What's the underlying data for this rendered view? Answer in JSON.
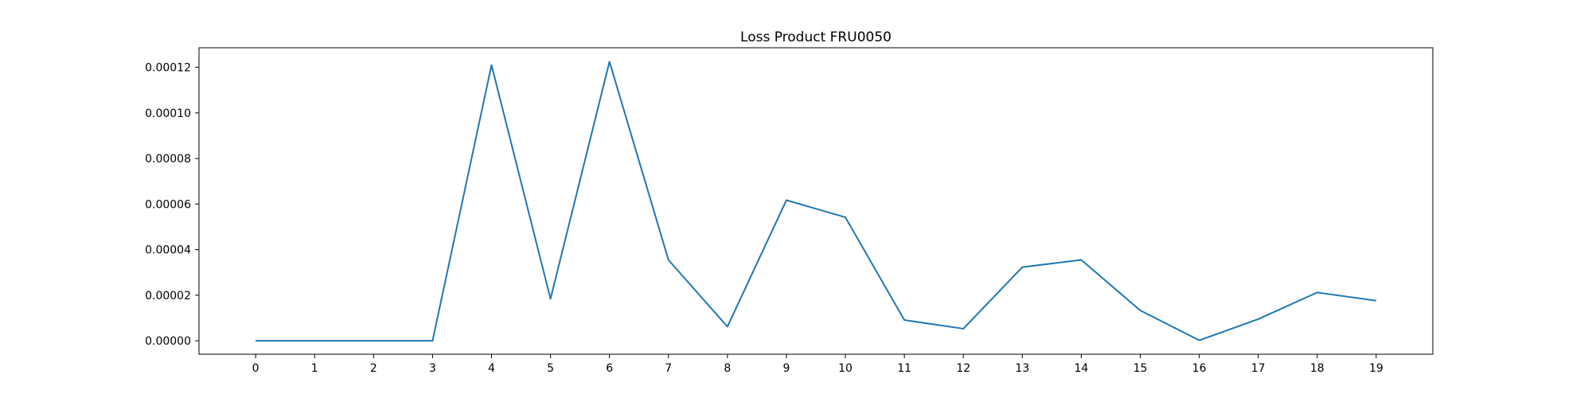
{
  "chart_data": {
    "type": "line",
    "title": "Loss Product FRU0050",
    "xlabel": "",
    "ylabel": "",
    "x": [
      0,
      1,
      2,
      3,
      4,
      5,
      6,
      7,
      8,
      9,
      10,
      11,
      12,
      13,
      14,
      15,
      16,
      17,
      18,
      19
    ],
    "series": [
      {
        "color": "#1f77b4",
        "values": [
          0.0,
          0.0,
          0.0,
          0.0,
          0.000121,
          1.84e-05,
          0.0001225,
          3.55e-05,
          6.2e-06,
          6.17e-05,
          5.42e-05,
          9.1e-06,
          5.3e-06,
          3.23e-05,
          3.55e-05,
          1.33e-05,
          2e-07,
          9.5e-06,
          2.12e-05,
          1.76e-05
        ]
      }
    ],
    "xlim": [
      -0.96,
      19.96
    ],
    "ylim": [
      -5.9e-06,
      0.0001286
    ],
    "xticks": [
      0,
      1,
      2,
      3,
      4,
      5,
      6,
      7,
      8,
      9,
      10,
      11,
      12,
      13,
      14,
      15,
      16,
      17,
      18,
      19
    ],
    "xtick_labels": [
      "0",
      "1",
      "2",
      "3",
      "4",
      "5",
      "6",
      "7",
      "8",
      "9",
      "10",
      "11",
      "12",
      "13",
      "14",
      "15",
      "16",
      "17",
      "18",
      "19"
    ],
    "yticks": [
      0,
      2e-05,
      4e-05,
      6e-05,
      8e-05,
      0.0001,
      0.00012
    ],
    "ytick_labels": [
      "0.00000",
      "0.00002",
      "0.00004",
      "0.00006",
      "0.00008",
      "0.00010",
      "0.00012"
    ],
    "grid": false,
    "legend": "none"
  }
}
